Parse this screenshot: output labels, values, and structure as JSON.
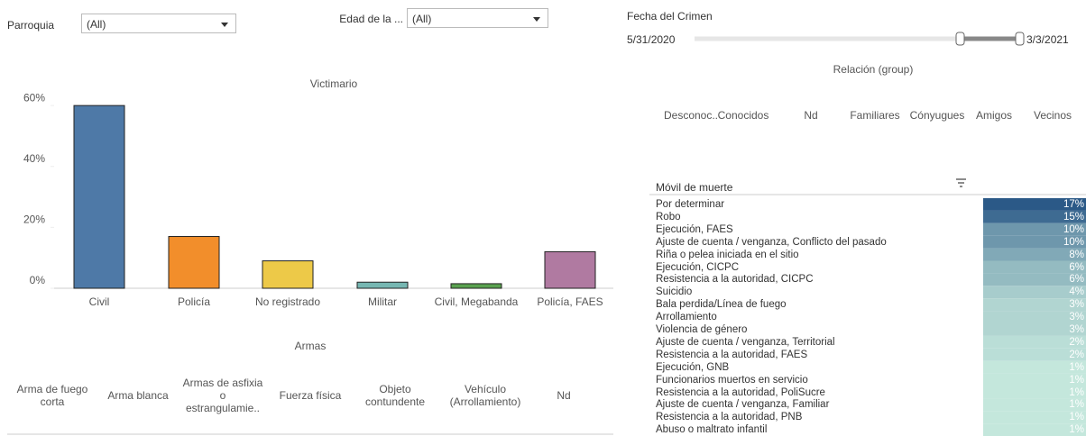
{
  "filters": [
    {
      "label": "Parroquia",
      "value": "(All)"
    },
    {
      "label": "Edad de la ...",
      "value": "(All)"
    }
  ],
  "date_filter": {
    "label": "Fecha del Crimen",
    "start": "5/31/2020",
    "end": "3/3/2021"
  },
  "armas": {
    "title": "Armas",
    "columns": [
      "Arma de fuego corta",
      "Arma blanca",
      "Armas de asfixia o estrangulamie..",
      "Fuerza física",
      "Objeto contundente",
      "Vehículo (Arrollamiento)",
      "Nd"
    ]
  },
  "relacion": {
    "title": "Relación  (group)",
    "columns": [
      "Desconoc..",
      "Conocidos",
      "Nd",
      "Familiares",
      "Cónyugues",
      "Amigos",
      "Vecinos"
    ]
  },
  "chart_data": [
    {
      "type": "bar",
      "title": "Victimario",
      "categories": [
        "Civil",
        "Policía",
        "No registrado",
        "Militar",
        "Civil, Megabanda",
        "Policía, FAES"
      ],
      "values": [
        60,
        17,
        9,
        2,
        1.5,
        12
      ],
      "colors": [
        "#4e79a7",
        "#f28e2b",
        "#edc948",
        "#76b7b2",
        "#59a14f",
        "#b07aa1"
      ],
      "ylim": [
        0,
        63
      ],
      "yticks": [
        {
          "value": 0,
          "label": "0%"
        },
        {
          "value": 20,
          "label": "20%"
        },
        {
          "value": 40,
          "label": "40%"
        },
        {
          "value": 60,
          "label": "60%"
        }
      ]
    },
    {
      "type": "heatmap",
      "title": "Móvil de muerte",
      "categories": [
        "Por determinar",
        "Robo",
        "Ejecución, FAES",
        "Ajuste de cuenta / venganza, Conflicto del pasado",
        "Riña o pelea iniciada en el sitio",
        "Ejecución, CICPC",
        "Resistencia a la autoridad, CICPC",
        "Suicidio",
        "Bala perdida/Línea de fuego",
        "Arrollamiento",
        "Violencia de género",
        "Ajuste de cuenta / venganza, Territorial",
        "Resistencia a la autoridad, FAES",
        "Ejecución, GNB",
        "Funcionarios muertos en servicio",
        "Resistencia a la autoridad, PoliSucre",
        "Ajuste de cuenta / venganza, Familiar",
        "Resistencia a la autoridad, PNB",
        "Abuso o maltrato infantil"
      ],
      "values": [
        17,
        15,
        10,
        10,
        8,
        6,
        6,
        4,
        3,
        3,
        3,
        2,
        2,
        1,
        1,
        1,
        1,
        1,
        1
      ],
      "value_labels": [
        "17%",
        "15%",
        "10%",
        "10%",
        "8%",
        "6%",
        "6%",
        "4%",
        "3%",
        "3%",
        "3%",
        "2%",
        "2%",
        "1%",
        "1%",
        "1%",
        "1%",
        "1%",
        "1%"
      ],
      "color_low": "#c4e7dc",
      "color_high": "#2b5987"
    }
  ]
}
